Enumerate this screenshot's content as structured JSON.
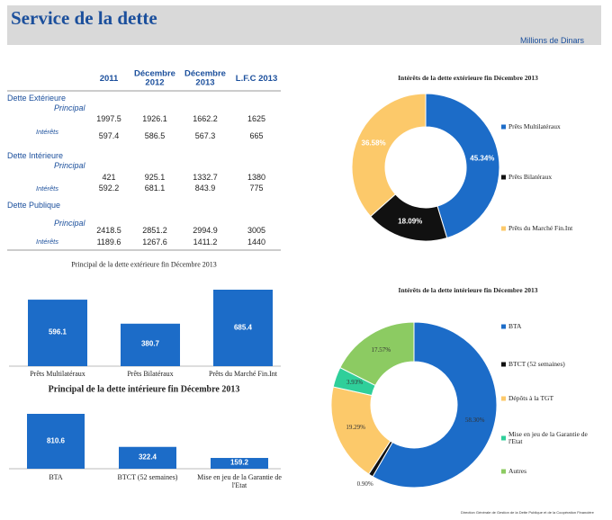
{
  "header": {
    "title": "Service de la dette",
    "unit": "Millions de Dinars"
  },
  "table": {
    "columns": [
      "2011",
      "Décembre 2012",
      "Décembre 2013",
      "L.F.C 2013"
    ],
    "sections": [
      {
        "name": "Dette Extérieure",
        "rows": [
          {
            "label": "Principal",
            "values": [
              1997.5,
              1926.1,
              1662.2,
              1625
            ]
          },
          {
            "label": "Intérêts",
            "values": [
              597.4,
              586.5,
              567.3,
              665
            ]
          }
        ]
      },
      {
        "name": "Dette Intérieure",
        "rows": [
          {
            "label": "Principal",
            "values": [
              421,
              925.1,
              1332.7,
              1380
            ]
          },
          {
            "label": "Intérêts",
            "values": [
              592.2,
              681.1,
              843.9,
              775
            ]
          }
        ]
      },
      {
        "name": "Dette Publique",
        "rows": [
          {
            "label": "Principal",
            "values": [
              2418.5,
              2851.2,
              2994.9,
              3005
            ]
          },
          {
            "label": "Intérêts",
            "values": [
              1189.6,
              1267.6,
              1411.2,
              1440
            ]
          }
        ]
      }
    ]
  },
  "chart_data": [
    {
      "type": "donut",
      "title": "Intérêts de la dette extérieure fin Décembre 2013",
      "categories": [
        "Prêts Multilatéraux",
        "Prêts Bilatéraux",
        "Prêts du Marché Fin.Int"
      ],
      "values": [
        45.34,
        18.09,
        36.58
      ],
      "value_labels": [
        "45.34%",
        "18.09%",
        "36.58%"
      ],
      "colors": [
        "#1c6cc8",
        "#111111",
        "#fcc96a"
      ]
    },
    {
      "type": "bar",
      "title": "Principal de la dette extérieure fin Décembre 2013",
      "categories": [
        "Prêts Multilatéraux",
        "Prêts Bilatéraux",
        "Prêts du Marché Fin.Int"
      ],
      "values": [
        596.1,
        380.7,
        685.4
      ],
      "color": "#1c6cc8"
    },
    {
      "type": "donut",
      "title": "Intérêts de la dette intérieure fin Décembre 2013",
      "categories": [
        "BTA",
        "BTCT (52 semaines)",
        "Dépôts à la TGT",
        "Mise en jeu de la Garantie de l'Etat",
        "Autres"
      ],
      "values": [
        58.3,
        0.9,
        19.29,
        3.93,
        17.57
      ],
      "value_labels": [
        "58.30%",
        "0.90%",
        "19.29%",
        "3.93%",
        "17.57%"
      ],
      "colors": [
        "#1c6cc8",
        "#111111",
        "#fcc96a",
        "#2fcf9a",
        "#8ccb62"
      ]
    },
    {
      "type": "bar",
      "title": "Principal de la dette intérieure fin Décembre 2013",
      "categories": [
        "BTA",
        "BTCT (52 semaines)",
        "Mise en jeu de la Garantie de l'Etat"
      ],
      "values": [
        810.6,
        322.4,
        159.2
      ],
      "color": "#1c6cc8"
    }
  ],
  "footer": "Direction Générale de Gestion de la Dette Publique et de la Coopération Financière"
}
